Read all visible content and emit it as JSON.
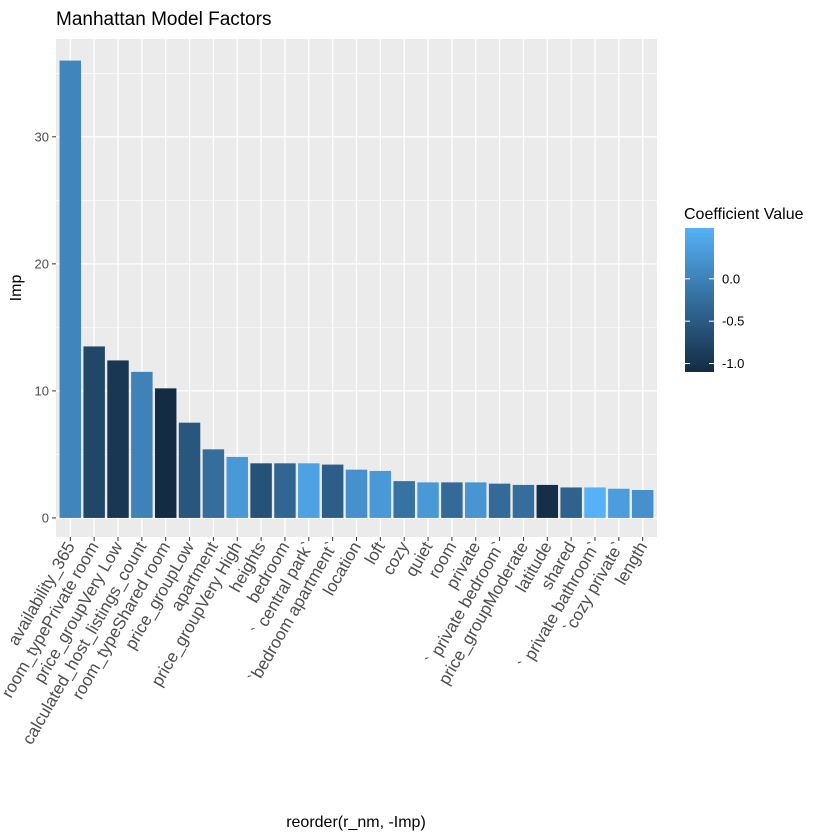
{
  "chart_data": {
    "type": "bar",
    "title": "Manhattan Model Factors",
    "xlabel": "reorder(r_nm, -Imp)",
    "ylabel": "Imp",
    "ylim": [
      -1.5,
      37.7
    ],
    "yticks": [
      0,
      10,
      20,
      30
    ],
    "grid": true,
    "legend": {
      "title": "Coefficient Value",
      "position": "right",
      "breaks": [
        0.0,
        -0.5,
        -1.0
      ],
      "labels": [
        "0.0",
        "-0.5",
        "-1.0"
      ],
      "range": [
        -1.1,
        0.6
      ],
      "low_color": "#132B43",
      "high_color": "#56B1F7"
    },
    "categories": [
      "availability_365",
      "room_typePrivate room",
      "price_groupVery Low",
      "calculated_host_listings_count",
      "room_typeShared room",
      "price_groupLow",
      "apartment",
      "price_groupVery High",
      "heights",
      "bedroom",
      "` central park`",
      "`bedroom apartment`",
      "location",
      "loft",
      "cozy",
      "quiet",
      "room",
      "private",
      "` private bedroom`",
      "price_groupModerate",
      "latitude",
      "shared",
      "` private bathroom`",
      "`cozy private`",
      "length"
    ],
    "values": [
      36.0,
      13.5,
      12.4,
      11.5,
      10.2,
      7.5,
      5.4,
      4.8,
      4.3,
      4.3,
      4.3,
      4.2,
      3.8,
      3.7,
      2.9,
      2.8,
      2.8,
      2.8,
      2.7,
      2.6,
      2.6,
      2.4,
      2.4,
      2.3,
      2.2
    ],
    "coefficients": [
      0.05,
      -0.75,
      -0.95,
      0.0,
      -1.1,
      -0.55,
      -0.25,
      0.3,
      -0.6,
      -0.35,
      0.4,
      -0.45,
      0.2,
      0.3,
      -0.2,
      0.3,
      -0.3,
      0.25,
      -0.3,
      -0.25,
      -1.05,
      -0.4,
      0.6,
      0.35,
      0.2
    ]
  }
}
